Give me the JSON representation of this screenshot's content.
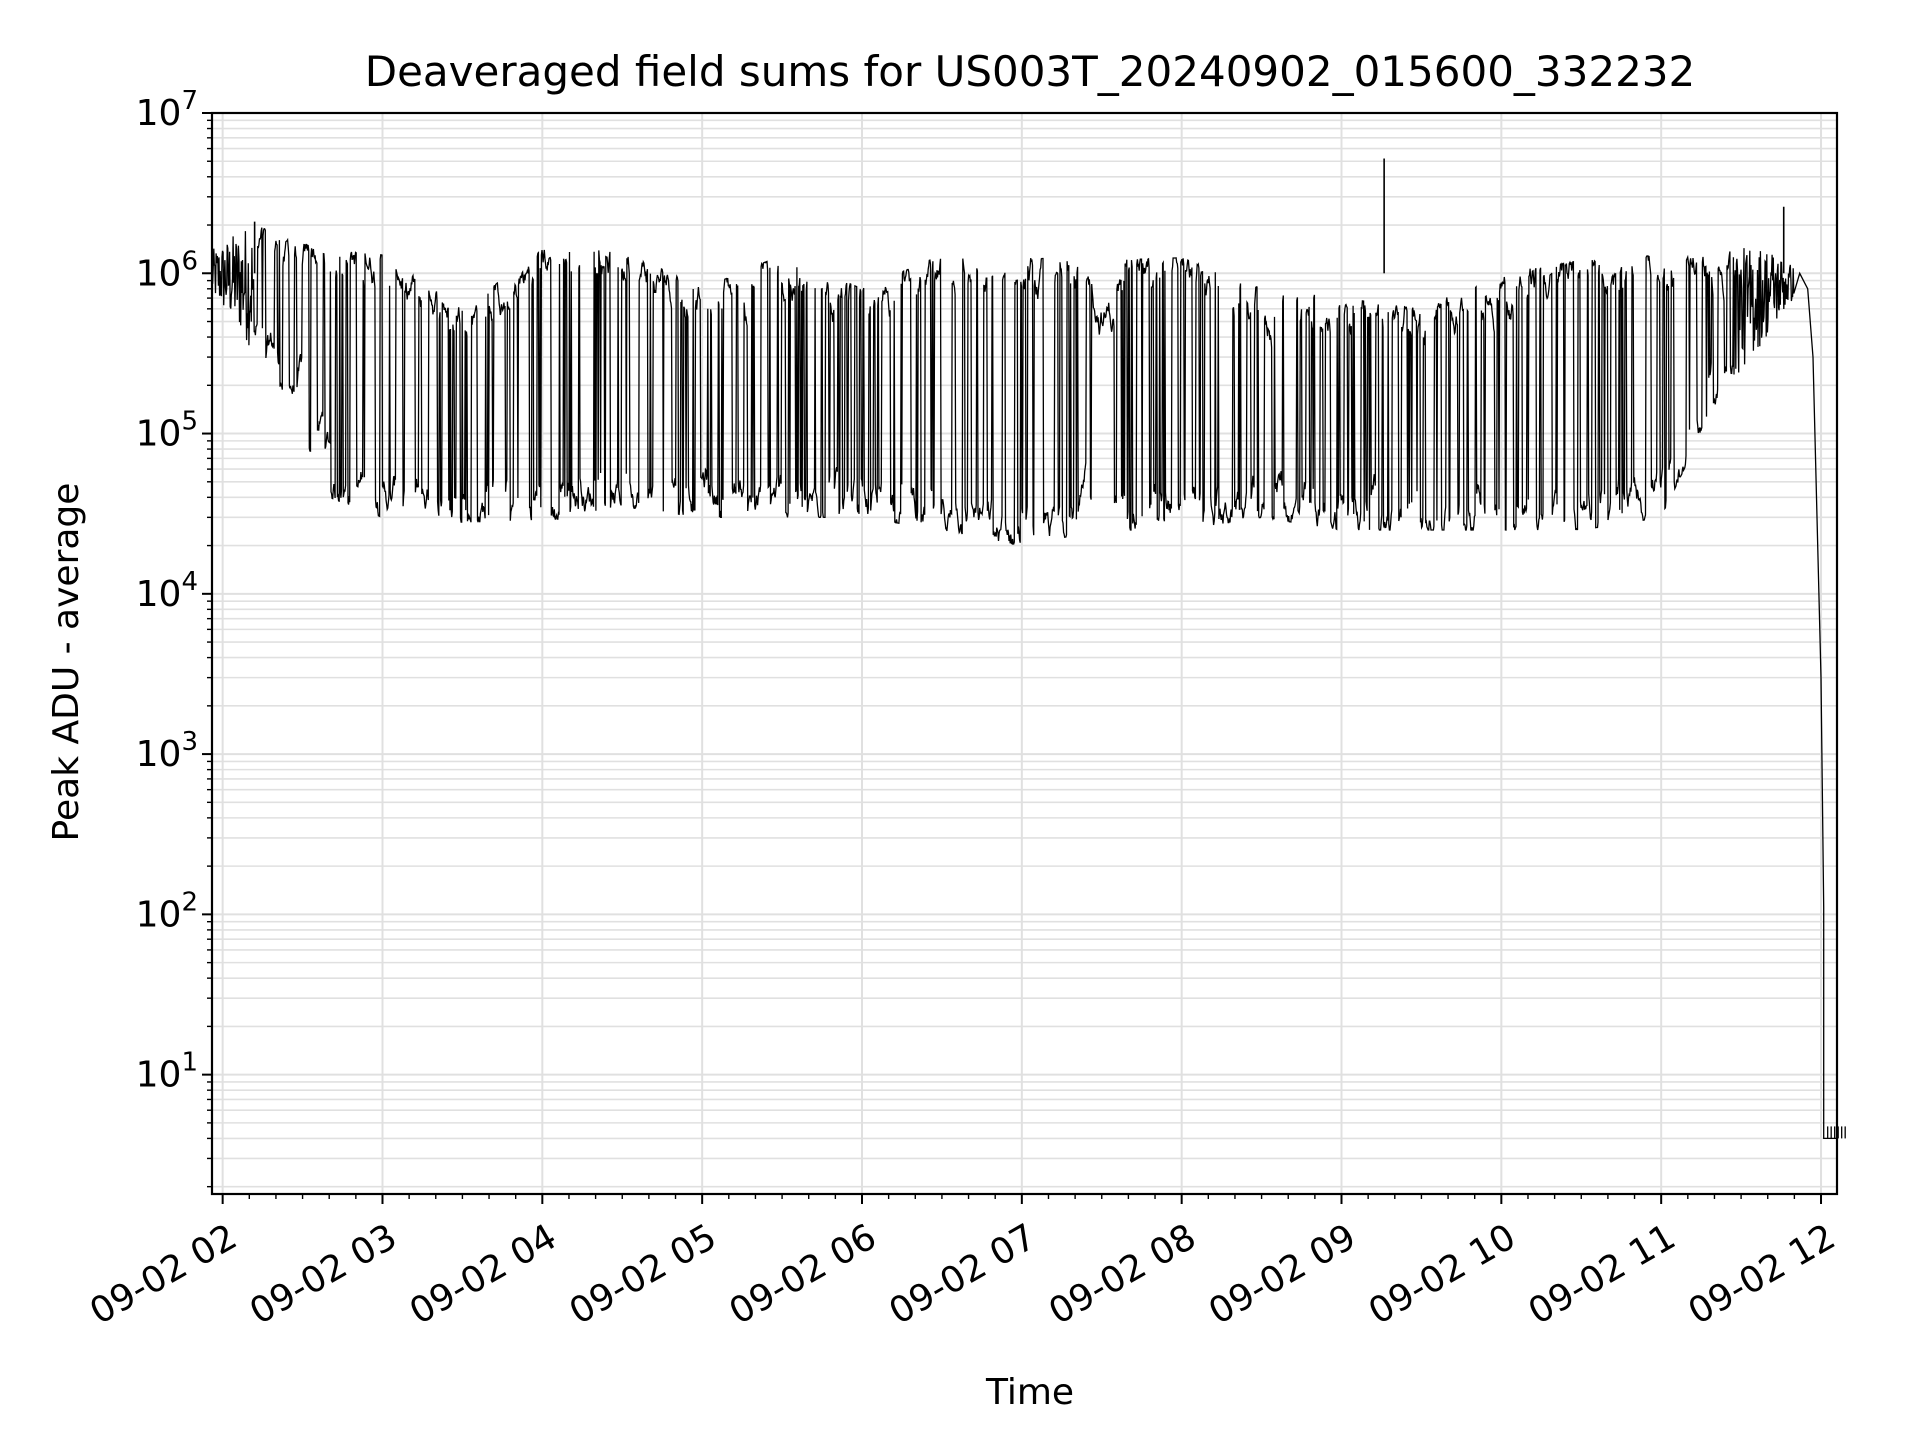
{
  "chart_data": {
    "type": "line",
    "title": "Deaveraged field sums for US003T_20240902_015600_332232",
    "xlabel": "Time",
    "ylabel": "Peak ADU - average",
    "yscale": "log",
    "ylim": [
      1.8,
      10000000
    ],
    "xlim": [
      "2024-09-02 01:56",
      "2024-09-02 12:06"
    ],
    "grid": true,
    "line_color": "#000000",
    "grid_color": "#e0e0e0",
    "x_ticks": [
      {
        "value": "2024-09-02 02:00",
        "label": "09-02 02"
      },
      {
        "value": "2024-09-02 03:00",
        "label": "09-02 03"
      },
      {
        "value": "2024-09-02 04:00",
        "label": "09-02 04"
      },
      {
        "value": "2024-09-02 05:00",
        "label": "09-02 05"
      },
      {
        "value": "2024-09-02 06:00",
        "label": "09-02 06"
      },
      {
        "value": "2024-09-02 07:00",
        "label": "09-02 07"
      },
      {
        "value": "2024-09-02 08:00",
        "label": "09-02 08"
      },
      {
        "value": "2024-09-02 09:00",
        "label": "09-02 09"
      },
      {
        "value": "2024-09-02 10:00",
        "label": "09-02 10"
      },
      {
        "value": "2024-09-02 11:00",
        "label": "09-02 11"
      },
      {
        "value": "2024-09-02 12:00",
        "label": "09-02 12"
      }
    ],
    "y_ticks": [
      {
        "value": 10,
        "base": "10",
        "exp": "1"
      },
      {
        "value": 100,
        "base": "10",
        "exp": "2"
      },
      {
        "value": 1000,
        "base": "10",
        "exp": "3"
      },
      {
        "value": 10000,
        "base": "10",
        "exp": "4"
      },
      {
        "value": 100000,
        "base": "10",
        "exp": "5"
      },
      {
        "value": 1000000,
        "base": "10",
        "exp": "6"
      },
      {
        "value": 10000000,
        "base": "10",
        "exp": "7"
      }
    ],
    "series": [
      {
        "envelope": [
          {
            "t": "2024-09-02 01:56",
            "low": 700000,
            "high": 1400000
          },
          {
            "t": "2024-09-02 02:10",
            "low": 350000,
            "high": 2100000
          },
          {
            "t": "2024-09-02 02:25",
            "low": 150000,
            "high": 1600000
          },
          {
            "t": "2024-09-02 02:40",
            "low": 40000,
            "high": 1400000
          },
          {
            "t": "2024-09-02 03:00",
            "low": 30000,
            "high": 1300000
          },
          {
            "t": "2024-09-02 03:30",
            "low": 28000,
            "high": 600000
          },
          {
            "t": "2024-09-02 04:00",
            "low": 28000,
            "high": 1400000
          },
          {
            "t": "2024-09-02 04:30",
            "low": 35000,
            "high": 1400000
          },
          {
            "t": "2024-09-02 05:00",
            "low": 30000,
            "high": 800000
          },
          {
            "t": "2024-09-02 05:30",
            "low": 30000,
            "high": 1300000
          },
          {
            "t": "2024-09-02 06:00",
            "low": 30000,
            "high": 800000
          },
          {
            "t": "2024-09-02 06:30",
            "low": 25000,
            "high": 1300000
          },
          {
            "t": "2024-09-02 07:00",
            "low": 20000,
            "high": 1250000
          },
          {
            "t": "2024-09-02 07:30",
            "low": 25000,
            "high": 1200000
          },
          {
            "t": "2024-09-02 08:00",
            "low": 25000,
            "high": 1250000
          },
          {
            "t": "2024-09-02 08:30",
            "low": 30000,
            "high": 800000
          },
          {
            "t": "2024-09-02 09:00",
            "low": 25000,
            "high": 700000
          },
          {
            "t": "2024-09-02 09:30",
            "low": 25000,
            "high": 600000
          },
          {
            "t": "2024-09-02 10:00",
            "low": 25000,
            "high": 1000000
          },
          {
            "t": "2024-09-02 10:30",
            "low": 25000,
            "high": 1200000
          },
          {
            "t": "2024-09-02 11:00",
            "low": 30000,
            "high": 1300000
          },
          {
            "t": "2024-09-02 11:20",
            "low": 150000,
            "high": 1400000
          },
          {
            "t": "2024-09-02 11:40",
            "low": 400000,
            "high": 1500000
          },
          {
            "t": "2024-09-02 11:50",
            "low": 700000,
            "high": 1100000
          }
        ],
        "spikes": [
          {
            "t": "2024-09-02 02:12",
            "value": 2100000
          },
          {
            "t": "2024-09-02 09:16",
            "value": 5200000
          },
          {
            "t": "2024-09-02 11:46",
            "value": 2600000
          }
        ],
        "tail": [
          {
            "t": "2024-09-02 11:52",
            "value": 1000000
          },
          {
            "t": "2024-09-02 11:55",
            "value": 800000
          },
          {
            "t": "2024-09-02 11:57",
            "value": 300000
          },
          {
            "t": "2024-09-02 12:00",
            "value": 3000
          },
          {
            "t": "2024-09-02 12:01",
            "value": 110
          },
          {
            "t": "2024-09-02 12:01",
            "value": 4
          },
          {
            "t": "2024-09-02 12:06",
            "value": 4
          }
        ]
      }
    ]
  }
}
